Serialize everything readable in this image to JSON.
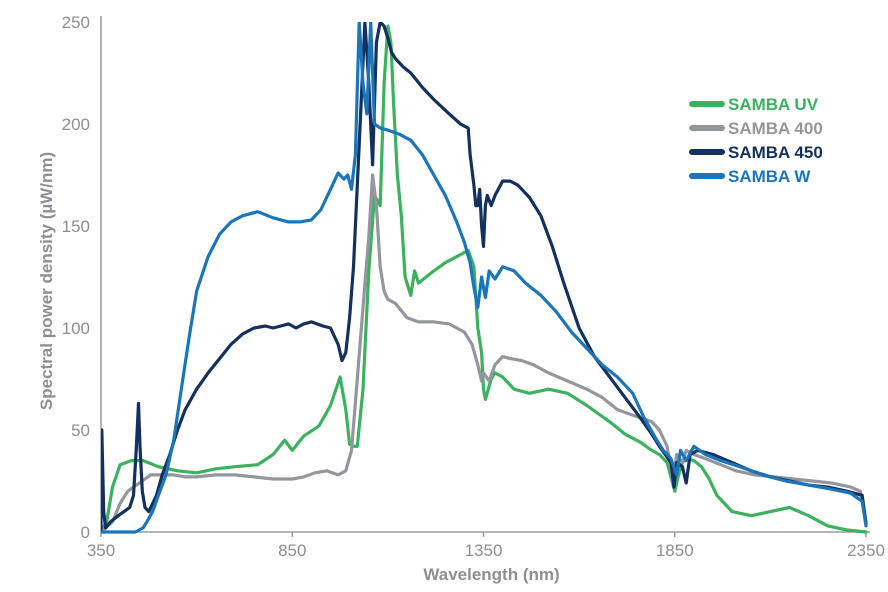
{
  "chart_data": {
    "type": "line",
    "xlabel": "Wavelength (nm)",
    "ylabel": "Spectral power density (µW/nm)",
    "xlim": [
      350,
      2350
    ],
    "ylim": [
      0,
      250
    ],
    "x_ticks": [
      "350",
      "850",
      "1350",
      "1850",
      "2350"
    ],
    "y_ticks": [
      "0",
      "50",
      "100",
      "150",
      "200",
      "250"
    ],
    "grid": false,
    "legend_position": "top-right",
    "series": [
      {
        "name": "SAMBA UV",
        "color": "#3cb15e",
        "points": [
          [
            350,
            0
          ],
          [
            365,
            5
          ],
          [
            380,
            22
          ],
          [
            400,
            33
          ],
          [
            430,
            35
          ],
          [
            460,
            35
          ],
          [
            500,
            32
          ],
          [
            550,
            30
          ],
          [
            600,
            29
          ],
          [
            650,
            31
          ],
          [
            700,
            32
          ],
          [
            760,
            33
          ],
          [
            800,
            38
          ],
          [
            830,
            45
          ],
          [
            850,
            40
          ],
          [
            880,
            47
          ],
          [
            920,
            52
          ],
          [
            950,
            62
          ],
          [
            975,
            76
          ],
          [
            990,
            60
          ],
          [
            1000,
            43
          ],
          [
            1010,
            42
          ],
          [
            1020,
            42
          ],
          [
            1035,
            70
          ],
          [
            1050,
            128
          ],
          [
            1065,
            165
          ],
          [
            1080,
            160
          ],
          [
            1090,
            220
          ],
          [
            1100,
            248
          ],
          [
            1108,
            240
          ],
          [
            1115,
            210
          ],
          [
            1125,
            175
          ],
          [
            1135,
            155
          ],
          [
            1145,
            125
          ],
          [
            1160,
            116
          ],
          [
            1170,
            128
          ],
          [
            1180,
            122
          ],
          [
            1200,
            125
          ],
          [
            1220,
            128
          ],
          [
            1250,
            132
          ],
          [
            1290,
            136
          ],
          [
            1310,
            138
          ],
          [
            1325,
            130
          ],
          [
            1335,
            100
          ],
          [
            1345,
            88
          ],
          [
            1350,
            70
          ],
          [
            1355,
            65
          ],
          [
            1370,
            75
          ],
          [
            1380,
            78
          ],
          [
            1400,
            76
          ],
          [
            1430,
            70
          ],
          [
            1470,
            68
          ],
          [
            1520,
            70
          ],
          [
            1570,
            68
          ],
          [
            1620,
            62
          ],
          [
            1680,
            54
          ],
          [
            1720,
            48
          ],
          [
            1760,
            44
          ],
          [
            1790,
            40
          ],
          [
            1810,
            38
          ],
          [
            1830,
            34
          ],
          [
            1850,
            20
          ],
          [
            1860,
            28
          ],
          [
            1870,
            34
          ],
          [
            1880,
            36
          ],
          [
            1900,
            35
          ],
          [
            1920,
            32
          ],
          [
            1940,
            26
          ],
          [
            1960,
            18
          ],
          [
            2000,
            10
          ],
          [
            2050,
            8
          ],
          [
            2100,
            10
          ],
          [
            2150,
            12
          ],
          [
            2200,
            8
          ],
          [
            2250,
            3
          ],
          [
            2300,
            1
          ],
          [
            2350,
            0
          ]
        ]
      },
      {
        "name": "SAMBA 400",
        "color": "#93979d",
        "points": [
          [
            350,
            0
          ],
          [
            380,
            5
          ],
          [
            400,
            14
          ],
          [
            420,
            20
          ],
          [
            450,
            24
          ],
          [
            480,
            28
          ],
          [
            510,
            28
          ],
          [
            540,
            28
          ],
          [
            570,
            27
          ],
          [
            600,
            27
          ],
          [
            650,
            28
          ],
          [
            700,
            28
          ],
          [
            750,
            27
          ],
          [
            800,
            26
          ],
          [
            850,
            26
          ],
          [
            880,
            27
          ],
          [
            910,
            29
          ],
          [
            940,
            30
          ],
          [
            970,
            28
          ],
          [
            990,
            30
          ],
          [
            1005,
            40
          ],
          [
            1020,
            75
          ],
          [
            1035,
            110
          ],
          [
            1050,
            145
          ],
          [
            1060,
            175
          ],
          [
            1070,
            160
          ],
          [
            1080,
            130
          ],
          [
            1090,
            118
          ],
          [
            1100,
            114
          ],
          [
            1120,
            112
          ],
          [
            1150,
            105
          ],
          [
            1180,
            103
          ],
          [
            1220,
            103
          ],
          [
            1260,
            102
          ],
          [
            1300,
            98
          ],
          [
            1320,
            92
          ],
          [
            1335,
            82
          ],
          [
            1345,
            74
          ],
          [
            1350,
            78
          ],
          [
            1365,
            74
          ],
          [
            1380,
            82
          ],
          [
            1400,
            86
          ],
          [
            1420,
            85
          ],
          [
            1450,
            84
          ],
          [
            1480,
            82
          ],
          [
            1520,
            78
          ],
          [
            1570,
            74
          ],
          [
            1620,
            70
          ],
          [
            1660,
            66
          ],
          [
            1700,
            60
          ],
          [
            1730,
            58
          ],
          [
            1760,
            56
          ],
          [
            1790,
            54
          ],
          [
            1810,
            50
          ],
          [
            1830,
            42
          ],
          [
            1845,
            25
          ],
          [
            1855,
            38
          ],
          [
            1870,
            34
          ],
          [
            1880,
            40
          ],
          [
            1900,
            38
          ],
          [
            1930,
            36
          ],
          [
            1970,
            33
          ],
          [
            2010,
            30
          ],
          [
            2060,
            28
          ],
          [
            2110,
            27
          ],
          [
            2160,
            26
          ],
          [
            2210,
            25
          ],
          [
            2260,
            24
          ],
          [
            2310,
            22
          ],
          [
            2335,
            20
          ],
          [
            2350,
            5
          ]
        ]
      },
      {
        "name": "SAMBA 450",
        "color": "#13305e",
        "points": [
          [
            350,
            0
          ],
          [
            352,
            50
          ],
          [
            357,
            10
          ],
          [
            362,
            2
          ],
          [
            375,
            5
          ],
          [
            395,
            8
          ],
          [
            410,
            10
          ],
          [
            425,
            12
          ],
          [
            435,
            18
          ],
          [
            442,
            40
          ],
          [
            448,
            63
          ],
          [
            452,
            42
          ],
          [
            458,
            20
          ],
          [
            465,
            12
          ],
          [
            475,
            10
          ],
          [
            495,
            18
          ],
          [
            510,
            28
          ],
          [
            530,
            38
          ],
          [
            550,
            50
          ],
          [
            570,
            60
          ],
          [
            600,
            70
          ],
          [
            630,
            78
          ],
          [
            660,
            85
          ],
          [
            690,
            92
          ],
          [
            720,
            97
          ],
          [
            750,
            100
          ],
          [
            780,
            101
          ],
          [
            800,
            100
          ],
          [
            820,
            101
          ],
          [
            840,
            102
          ],
          [
            860,
            100
          ],
          [
            880,
            102
          ],
          [
            900,
            103
          ],
          [
            930,
            101
          ],
          [
            950,
            100
          ],
          [
            970,
            92
          ],
          [
            980,
            84
          ],
          [
            990,
            88
          ],
          [
            1000,
            105
          ],
          [
            1010,
            130
          ],
          [
            1020,
            170
          ],
          [
            1030,
            210
          ],
          [
            1040,
            250
          ],
          [
            1050,
            220
          ],
          [
            1060,
            180
          ],
          [
            1070,
            240
          ],
          [
            1080,
            250
          ],
          [
            1090,
            248
          ],
          [
            1100,
            242
          ],
          [
            1110,
            235
          ],
          [
            1120,
            232
          ],
          [
            1140,
            228
          ],
          [
            1160,
            225
          ],
          [
            1190,
            218
          ],
          [
            1220,
            212
          ],
          [
            1260,
            205
          ],
          [
            1290,
            200
          ],
          [
            1310,
            198
          ],
          [
            1315,
            185
          ],
          [
            1325,
            170
          ],
          [
            1330,
            160
          ],
          [
            1335,
            160
          ],
          [
            1340,
            168
          ],
          [
            1345,
            150
          ],
          [
            1350,
            140
          ],
          [
            1355,
            160
          ],
          [
            1360,
            165
          ],
          [
            1370,
            160
          ],
          [
            1380,
            165
          ],
          [
            1400,
            172
          ],
          [
            1420,
            172
          ],
          [
            1440,
            170
          ],
          [
            1470,
            164
          ],
          [
            1500,
            155
          ],
          [
            1530,
            140
          ],
          [
            1560,
            122
          ],
          [
            1600,
            100
          ],
          [
            1640,
            86
          ],
          [
            1680,
            76
          ],
          [
            1720,
            66
          ],
          [
            1760,
            56
          ],
          [
            1790,
            48
          ],
          [
            1810,
            42
          ],
          [
            1825,
            38
          ],
          [
            1840,
            34
          ],
          [
            1848,
            22
          ],
          [
            1855,
            34
          ],
          [
            1870,
            32
          ],
          [
            1880,
            24
          ],
          [
            1890,
            38
          ],
          [
            1910,
            40
          ],
          [
            1950,
            38
          ],
          [
            2000,
            34
          ],
          [
            2050,
            30
          ],
          [
            2100,
            27
          ],
          [
            2150,
            25
          ],
          [
            2200,
            23
          ],
          [
            2250,
            22
          ],
          [
            2300,
            20
          ],
          [
            2340,
            18
          ],
          [
            2350,
            4
          ]
        ]
      },
      {
        "name": "SAMBA W",
        "color": "#1b75bb",
        "points": [
          [
            350,
            0
          ],
          [
            380,
            0
          ],
          [
            440,
            0
          ],
          [
            460,
            2
          ],
          [
            470,
            5
          ],
          [
            485,
            10
          ],
          [
            500,
            18
          ],
          [
            520,
            28
          ],
          [
            540,
            45
          ],
          [
            560,
            70
          ],
          [
            580,
            95
          ],
          [
            600,
            118
          ],
          [
            630,
            135
          ],
          [
            660,
            146
          ],
          [
            690,
            152
          ],
          [
            720,
            155
          ],
          [
            760,
            157
          ],
          [
            800,
            154
          ],
          [
            840,
            152
          ],
          [
            870,
            152
          ],
          [
            900,
            153
          ],
          [
            925,
            158
          ],
          [
            950,
            168
          ],
          [
            970,
            176
          ],
          [
            985,
            173
          ],
          [
            995,
            175
          ],
          [
            1005,
            168
          ],
          [
            1015,
            185
          ],
          [
            1025,
            250
          ],
          [
            1035,
            220
          ],
          [
            1045,
            205
          ],
          [
            1055,
            250
          ],
          [
            1065,
            200
          ],
          [
            1080,
            198
          ],
          [
            1100,
            197
          ],
          [
            1130,
            195
          ],
          [
            1160,
            192
          ],
          [
            1190,
            185
          ],
          [
            1220,
            175
          ],
          [
            1250,
            165
          ],
          [
            1280,
            152
          ],
          [
            1300,
            142
          ],
          [
            1315,
            132
          ],
          [
            1325,
            120
          ],
          [
            1335,
            110
          ],
          [
            1345,
            125
          ],
          [
            1355,
            115
          ],
          [
            1365,
            128
          ],
          [
            1380,
            124
          ],
          [
            1400,
            130
          ],
          [
            1430,
            128
          ],
          [
            1460,
            122
          ],
          [
            1500,
            116
          ],
          [
            1540,
            108
          ],
          [
            1580,
            98
          ],
          [
            1620,
            90
          ],
          [
            1660,
            82
          ],
          [
            1700,
            76
          ],
          [
            1740,
            68
          ],
          [
            1770,
            56
          ],
          [
            1800,
            46
          ],
          [
            1820,
            40
          ],
          [
            1840,
            36
          ],
          [
            1855,
            28
          ],
          [
            1865,
            40
          ],
          [
            1880,
            35
          ],
          [
            1900,
            42
          ],
          [
            1930,
            38
          ],
          [
            1970,
            35
          ],
          [
            2020,
            32
          ],
          [
            2080,
            28
          ],
          [
            2140,
            25
          ],
          [
            2200,
            23
          ],
          [
            2260,
            21
          ],
          [
            2310,
            19
          ],
          [
            2340,
            15
          ],
          [
            2350,
            3
          ]
        ]
      }
    ]
  }
}
